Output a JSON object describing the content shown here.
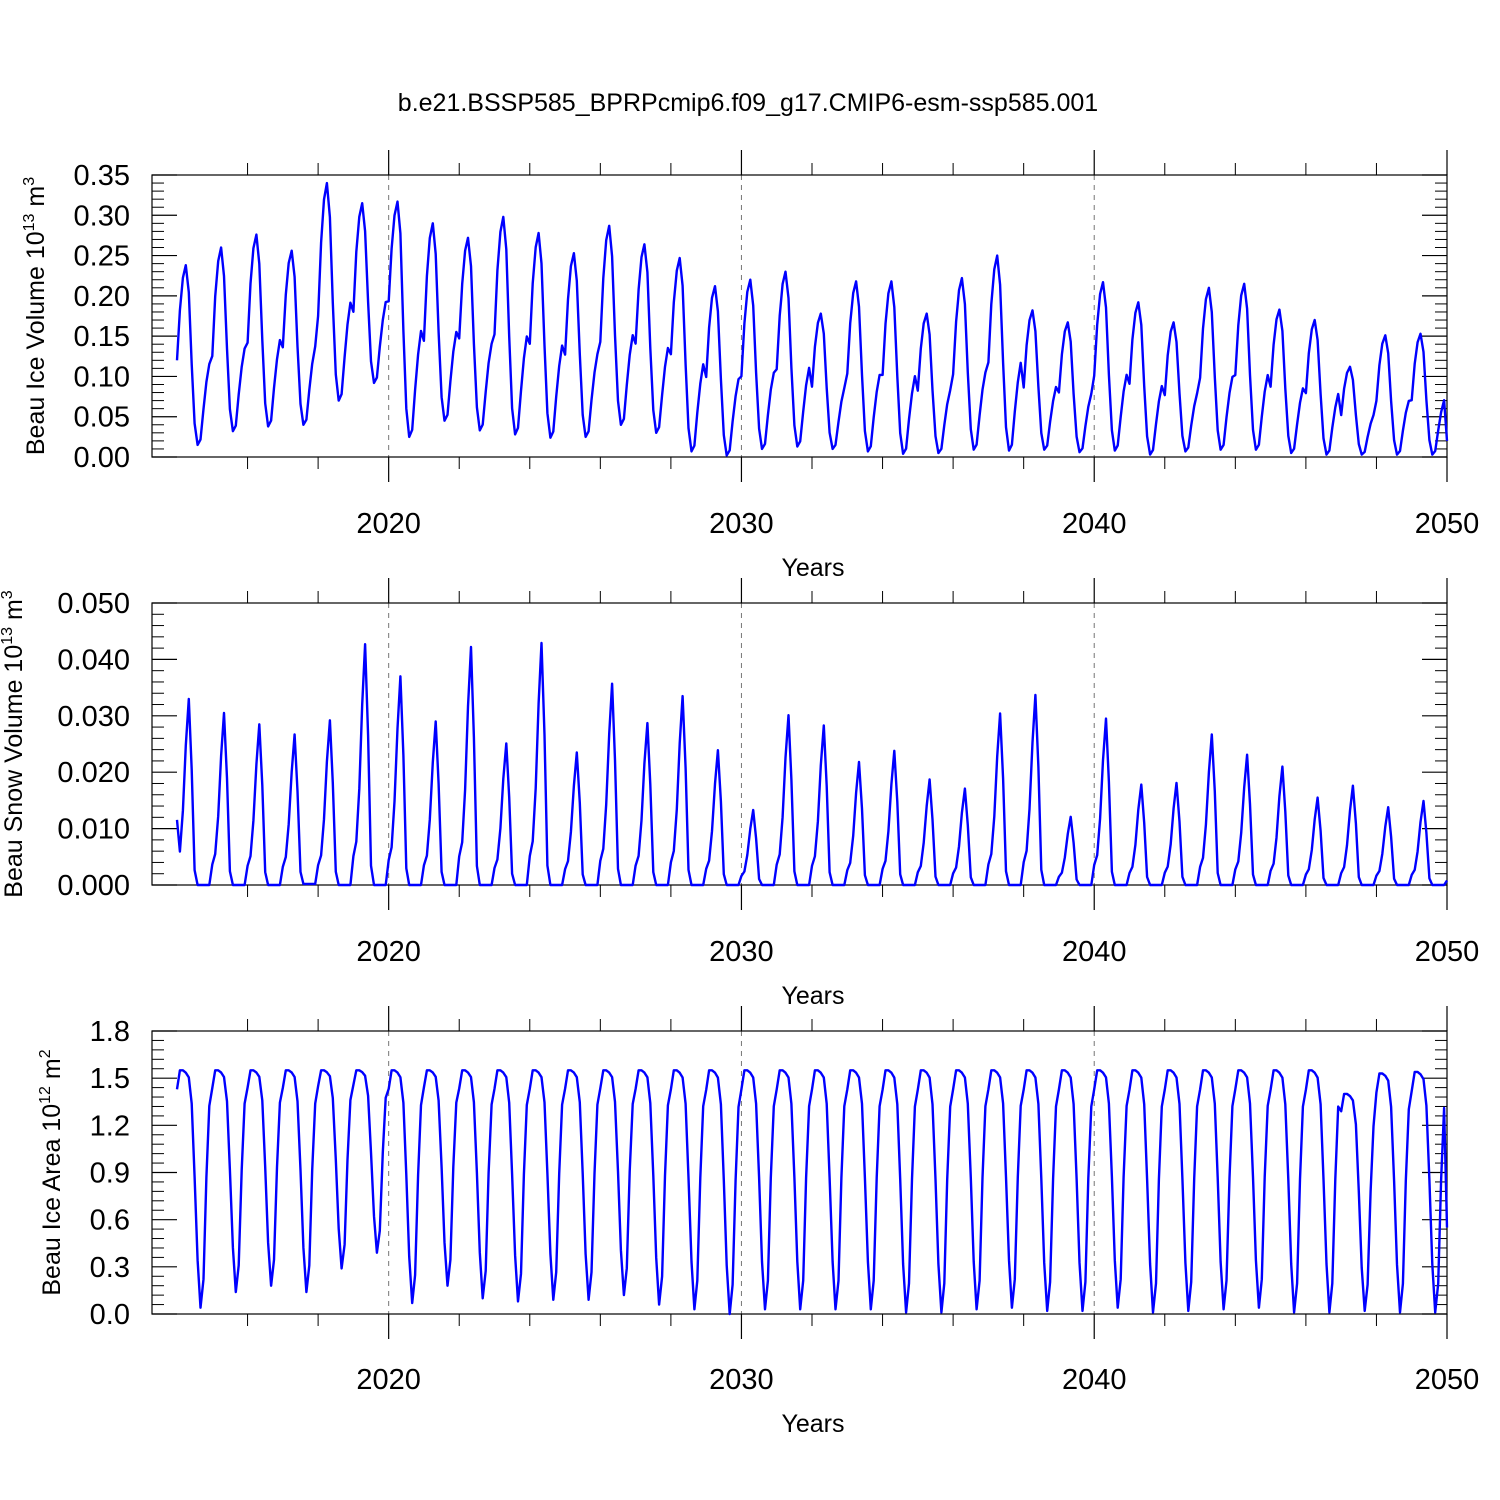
{
  "title": "b.e21.BSSP585_BPRPcmip6.f09_g17.CMIP6-esm-ssp585.001",
  "colors": {
    "series": "#0000ff",
    "axis": "#000000",
    "gridline": "#777777",
    "background": "#ffffff"
  },
  "chart_data": [
    {
      "type": "line",
      "name": "ice-volume",
      "title": "b.e21.BSSP585_BPRPcmip6.f09_g17.CMIP6-esm-ssp585.001",
      "ylabel": "Beau Ice Volume 10",
      "ylabel_exp": "13",
      "ylabel_unit": " m",
      "ylabel_unit_exp": "3",
      "xlabel": "Years",
      "xlim": [
        2014,
        2050
      ],
      "ylim": [
        0,
        0.35
      ],
      "yticks": [
        "0.00",
        "0.05",
        "0.10",
        "0.15",
        "0.20",
        "0.25",
        "0.30",
        "0.35"
      ],
      "ytick_values": [
        0,
        0.05,
        0.1,
        0.15,
        0.2,
        0.25,
        0.3,
        0.35
      ],
      "xticks": [
        2020,
        2030,
        2040,
        2050
      ],
      "xtick_labels": [
        "2020",
        "2030",
        "2040",
        "2050"
      ],
      "gridlines_x": [
        2020,
        2030,
        2040
      ],
      "start_year": 2014,
      "start_month": 1,
      "annual_max": [
        0.238,
        0.26,
        0.276,
        0.256,
        0.34,
        0.315,
        0.317,
        0.29,
        0.272,
        0.298,
        0.278,
        0.253,
        0.287,
        0.264,
        0.247,
        0.212,
        0.22,
        0.23,
        0.178,
        0.218,
        0.218,
        0.178,
        0.222,
        0.25,
        0.182,
        0.167,
        0.217,
        0.192,
        0.167,
        0.21,
        0.215,
        0.183,
        0.17,
        0.112,
        0.151,
        0.153
      ],
      "annual_min": [
        0.015,
        0.032,
        0.038,
        0.04,
        0.07,
        0.092,
        0.025,
        0.045,
        0.033,
        0.028,
        0.024,
        0.025,
        0.04,
        0.03,
        0.007,
        0.002,
        0.01,
        0.013,
        0.01,
        0.007,
        0.004,
        0.005,
        0.009,
        0.008,
        0.009,
        0.006,
        0.008,
        0.003,
        0.007,
        0.009,
        0.009,
        0.005,
        0.003,
        0.003,
        0.003,
        0.003
      ],
      "end_value": 0.02
    },
    {
      "type": "line",
      "name": "snow-volume",
      "ylabel": "Beau Snow Volume 10",
      "ylabel_exp": "13",
      "ylabel_unit": " m",
      "ylabel_unit_exp": "3",
      "xlabel": "Years",
      "xlim": [
        2014,
        2050
      ],
      "ylim": [
        0,
        0.05
      ],
      "yticks": [
        "0.000",
        "0.010",
        "0.020",
        "0.030",
        "0.040",
        "0.050"
      ],
      "ytick_values": [
        0,
        0.01,
        0.02,
        0.03,
        0.04,
        0.05
      ],
      "xticks": [
        2020,
        2030,
        2040,
        2050
      ],
      "xtick_labels": [
        "2020",
        "2030",
        "2040",
        "2050"
      ],
      "gridlines_x": [
        2020,
        2030,
        2040
      ],
      "start_year": 2014,
      "start_month": 1,
      "annual_max": [
        0.033,
        0.0305,
        0.0285,
        0.0267,
        0.0292,
        0.0427,
        0.037,
        0.029,
        0.0422,
        0.0251,
        0.0429,
        0.0235,
        0.0357,
        0.0287,
        0.0335,
        0.0239,
        0.0133,
        0.0301,
        0.0283,
        0.0218,
        0.0238,
        0.0187,
        0.0171,
        0.0304,
        0.0337,
        0.0121,
        0.0295,
        0.0178,
        0.0181,
        0.0267,
        0.0231,
        0.021,
        0.0155,
        0.0176,
        0.0138,
        0.0149
      ],
      "annual_min": [
        0.0,
        0.0,
        0.0,
        0.0002,
        0.0,
        0.0,
        0.0,
        0.0,
        0.0,
        0.0,
        0.0,
        0.0,
        0.0,
        0.0,
        0.0,
        0.0,
        0.0,
        0.0,
        0.0,
        0.0,
        0.0,
        0.0,
        0.0,
        0.0,
        0.0,
        0.0,
        0.0,
        0.0,
        0.0,
        0.0,
        0.0,
        0.0,
        0.0,
        0.0,
        0.0,
        0.0
      ],
      "end_value": 0.0008
    },
    {
      "type": "line",
      "name": "ice-area",
      "ylabel": "Beau Ice Area 10",
      "ylabel_exp": "12",
      "ylabel_unit": " m",
      "ylabel_unit_exp": "2",
      "xlabel": "Years",
      "xlim": [
        2014,
        2050
      ],
      "ylim": [
        0,
        1.8
      ],
      "yticks": [
        "0.0",
        "0.3",
        "0.6",
        "0.9",
        "1.2",
        "1.5",
        "1.8"
      ],
      "ytick_values": [
        0,
        0.3,
        0.6,
        0.9,
        1.2,
        1.5,
        1.8
      ],
      "xticks": [
        2020,
        2030,
        2040,
        2050
      ],
      "xtick_labels": [
        "2020",
        "2030",
        "2040",
        "2050"
      ],
      "gridlines_x": [
        2020,
        2030,
        2040
      ],
      "start_year": 2014,
      "start_month": 1,
      "annual_max": [
        1.55,
        1.55,
        1.55,
        1.55,
        1.55,
        1.55,
        1.55,
        1.55,
        1.55,
        1.55,
        1.55,
        1.55,
        1.55,
        1.55,
        1.55,
        1.55,
        1.55,
        1.55,
        1.55,
        1.55,
        1.55,
        1.55,
        1.55,
        1.55,
        1.55,
        1.55,
        1.55,
        1.55,
        1.55,
        1.55,
        1.55,
        1.55,
        1.55,
        1.4,
        1.53,
        1.54
      ],
      "annual_min": [
        0.04,
        0.14,
        0.18,
        0.14,
        0.29,
        0.39,
        0.07,
        0.18,
        0.1,
        0.08,
        0.09,
        0.09,
        0.12,
        0.06,
        0.03,
        0.0,
        0.03,
        0.03,
        0.03,
        0.03,
        0.01,
        0.01,
        0.03,
        0.04,
        0.02,
        0.02,
        0.04,
        0.01,
        0.02,
        0.03,
        0.04,
        0.01,
        0.01,
        0.02,
        0.01,
        0.01
      ],
      "end_value": 0.55
    }
  ]
}
